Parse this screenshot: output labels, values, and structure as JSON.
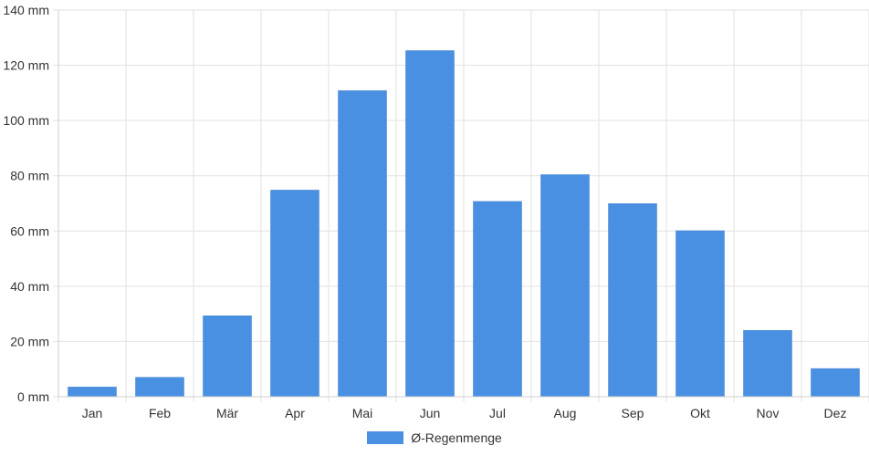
{
  "chart_data": {
    "type": "bar",
    "categories": [
      "Jan",
      "Feb",
      "Mär",
      "Apr",
      "Mai",
      "Jun",
      "Jul",
      "Aug",
      "Sep",
      "Okt",
      "Nov",
      "Dez"
    ],
    "series": [
      {
        "name": "Ø-Regenmenge",
        "values": [
          3.5,
          7,
          29.3,
          74.8,
          110.8,
          125.3,
          70.7,
          80.4,
          69.9,
          60.1,
          24,
          10.2
        ],
        "color": "#4a90e2"
      }
    ],
    "ylim": [
      0,
      140
    ],
    "yticks": [
      0,
      20,
      40,
      60,
      80,
      100,
      120,
      140
    ],
    "y_tick_labels": [
      "0 mm",
      "20 mm",
      "40 mm",
      "60 mm",
      "80 mm",
      "100 mm",
      "120 mm",
      "140 mm"
    ],
    "grid": true,
    "legend_position": "bottom"
  }
}
